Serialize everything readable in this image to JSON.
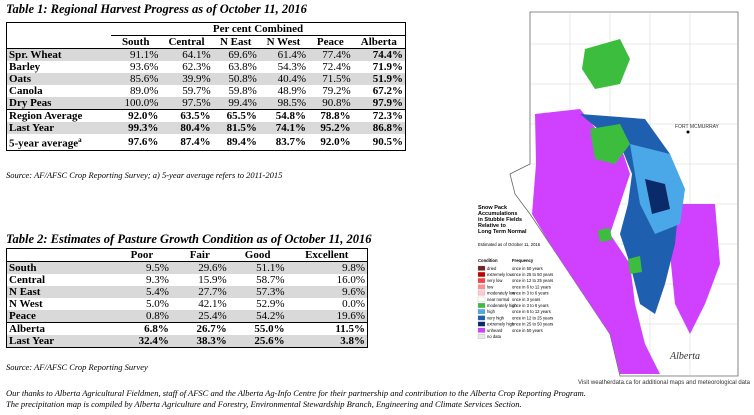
{
  "table1": {
    "title": "Table 1: Regional Harvest Progress as of October 11, 2016",
    "group_header": "Per cent Combined",
    "columns": [
      "South",
      "Central",
      "N East",
      "N West",
      "Peace",
      "Alberta"
    ],
    "rows": [
      {
        "label": "Spr. Wheat",
        "values": [
          "91.1%",
          "64.1%",
          "69.6%",
          "61.4%",
          "77.4%",
          "74.4%"
        ]
      },
      {
        "label": "Barley",
        "values": [
          "93.6%",
          "62.3%",
          "63.8%",
          "54.3%",
          "72.4%",
          "71.9%"
        ]
      },
      {
        "label": "Oats",
        "values": [
          "85.6%",
          "39.9%",
          "50.8%",
          "40.4%",
          "71.5%",
          "51.9%"
        ]
      },
      {
        "label": "Canola",
        "values": [
          "89.0%",
          "59.7%",
          "59.8%",
          "48.9%",
          "79.2%",
          "67.2%"
        ]
      },
      {
        "label": "Dry Peas",
        "values": [
          "100.0%",
          "97.5%",
          "99.4%",
          "98.5%",
          "90.8%",
          "97.9%"
        ]
      },
      {
        "label": "Region Average",
        "values": [
          "92.0%",
          "63.5%",
          "65.5%",
          "54.8%",
          "78.8%",
          "72.3%"
        ]
      },
      {
        "label": "Last Year",
        "values": [
          "99.3%",
          "80.4%",
          "81.5%",
          "74.1%",
          "95.2%",
          "86.8%"
        ]
      },
      {
        "label": "5-year average",
        "label_sup": "a",
        "values": [
          "97.6%",
          "87.4%",
          "89.4%",
          "83.7%",
          "92.0%",
          "90.5%"
        ]
      }
    ],
    "source": "Source: AF/AFSC Crop Reporting Survey; a) 5-year average refers to 2011-2015"
  },
  "table2": {
    "title": "Table 2: Estimates of Pasture Growth Condition as of October 11, 2016",
    "columns": [
      "Poor",
      "Fair",
      "Good",
      "Excellent"
    ],
    "rows": [
      {
        "label": "South",
        "values": [
          "9.5%",
          "29.6%",
          "51.1%",
          "9.8%"
        ]
      },
      {
        "label": "Central",
        "values": [
          "9.3%",
          "15.9%",
          "58.7%",
          "16.0%"
        ]
      },
      {
        "label": "N East",
        "values": [
          "5.4%",
          "27.7%",
          "57.3%",
          "9.6%"
        ]
      },
      {
        "label": "N West",
        "values": [
          "5.0%",
          "42.1%",
          "52.9%",
          "0.0%"
        ]
      },
      {
        "label": "Peace",
        "values": [
          "0.8%",
          "25.4%",
          "54.2%",
          "19.6%"
        ]
      },
      {
        "label": "Alberta",
        "values": [
          "6.8%",
          "26.7%",
          "55.0%",
          "11.5%"
        ]
      },
      {
        "label": "Last Year",
        "values": [
          "32.4%",
          "38.3%",
          "25.6%",
          "3.8%"
        ]
      }
    ],
    "source": "Source: AF/AFSC Crop Reporting Survey"
  },
  "thanks": {
    "line1": "Our thanks to Alberta Agricultural Fieldmen, staff of AFSC and the Alberta Ag-Info Centre for their partnership and contribution to the Alberta Crop Reporting Program.",
    "line2": "The precipitation map is compiled by Alberta Agriculture and Forestry, Environmental Stewardship Branch, Engineering and Climate Services Section."
  },
  "map": {
    "legend_title_1": "Snow Pack",
    "legend_title_2": "Accumulations",
    "legend_title_3": "in Stubble Fields",
    "legend_title_4": "Relative to",
    "legend_title_5": "Long Term Normal",
    "estimated": "Estimated as of October 11, 2016",
    "col_condition": "Condition",
    "col_frequency": "Frequency",
    "fort_mcmurray": "FORT MCMURRAY",
    "logo": "Alberta",
    "visit": "Visit weatherdata.ca for additional maps and meteorological data",
    "legend": [
      {
        "condition": "dried",
        "frequency": "once in 50 years",
        "color": "#7a2020"
      },
      {
        "condition": "extremely low",
        "frequency": "once in 25 to 50 years",
        "color": "#c00000"
      },
      {
        "condition": "very low",
        "frequency": "once in 12 to 25 years",
        "color": "#ff4040"
      },
      {
        "condition": "low",
        "frequency": "once in 6 to 12 years",
        "color": "#ff9090"
      },
      {
        "condition": "moderately low",
        "frequency": "once in 3 to 6 years",
        "color": "#ffc8c8"
      },
      {
        "condition": "near normal",
        "frequency": "once in 3 years",
        "color": "#ffffff"
      },
      {
        "condition": "moderately high",
        "frequency": "once in 3 to 6 years",
        "color": "#3dbd3d"
      },
      {
        "condition": "high",
        "frequency": "once in 6 to 12 years",
        "color": "#4aa8e8"
      },
      {
        "condition": "very high",
        "frequency": "once in 12 to 25 years",
        "color": "#1f5fb0"
      },
      {
        "condition": "extremely high",
        "frequency": "once in 25 to 50 years",
        "color": "#0a2a6a"
      },
      {
        "condition": "unheard",
        "frequency": "once in 50 years",
        "color": "#d040ff"
      },
      {
        "condition": "no data",
        "frequency": "",
        "color": "#e8e8e8"
      }
    ]
  }
}
